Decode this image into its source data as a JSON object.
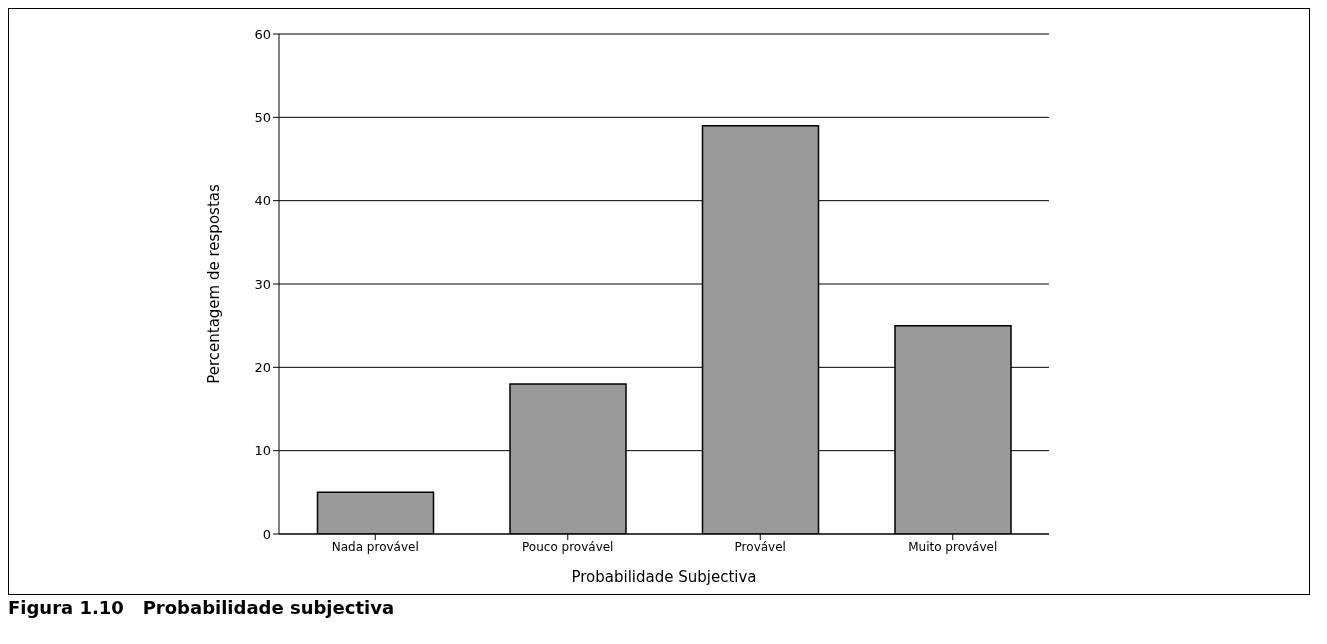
{
  "chart_data": {
    "type": "bar",
    "xlabel": "Probabilidade Subjectiva",
    "ylabel": "Percentagem de respostas",
    "categories": [
      "Nada provável",
      "Pouco provável",
      "Provável",
      "Muito provável"
    ],
    "values": [
      5,
      18,
      49,
      25
    ],
    "color": "#9a9a9a",
    "ylim": [
      0,
      60
    ],
    "yticks": [
      0,
      10,
      20,
      30,
      40,
      50,
      60
    ],
    "grid": "y",
    "annotations": [
      "Figura 1.10   Probabilidade subjectiva"
    ]
  }
}
